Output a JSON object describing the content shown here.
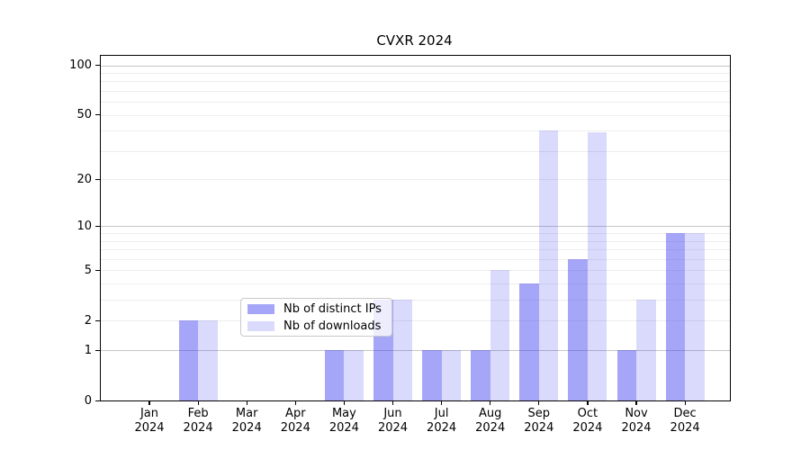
{
  "chart_data": {
    "type": "bar",
    "title": "CVXR 2024",
    "x_tick_months": [
      "Jan",
      "Feb",
      "Mar",
      "Apr",
      "May",
      "Jun",
      "Jul",
      "Aug",
      "Sep",
      "Oct",
      "Nov",
      "Dec"
    ],
    "x_tick_year": "2024",
    "series": [
      {
        "name": "Nb of distinct IPs",
        "color": "rgba(60,60,240,0.46)",
        "values": [
          0,
          2,
          0,
          0,
          1,
          3,
          1,
          1,
          4,
          6,
          1,
          9
        ]
      },
      {
        "name": "Nb of downloads",
        "color": "rgba(60,60,240,0.19)",
        "values": [
          0,
          2,
          0,
          0,
          1,
          3,
          1,
          5,
          40,
          39,
          3,
          9
        ]
      }
    ],
    "yscale": "log1p",
    "ylim": [
      0,
      114
    ],
    "yticks": [
      0,
      1,
      2,
      5,
      10,
      20,
      50,
      100
    ],
    "major_gridlines": [
      1,
      10,
      100
    ],
    "minor_gridlines": [
      2,
      3,
      4,
      5,
      6,
      7,
      8,
      9,
      20,
      30,
      40,
      50,
      60,
      70,
      80,
      90
    ],
    "grid": "horizontal",
    "legend_position": "lower center",
    "colors": {
      "bar_dark": "rgba(60,60,240,0.46)",
      "bar_light": "rgba(60,60,240,0.19)",
      "major_grid": "#c6c6c6",
      "minor_grid": "#ededed",
      "spine": "#000000"
    }
  }
}
